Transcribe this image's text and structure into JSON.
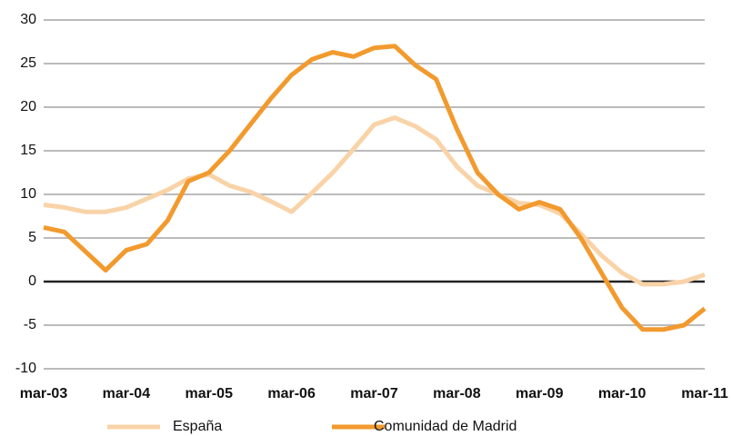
{
  "chart_data": {
    "type": "line",
    "categories": [
      "mar-03",
      null,
      null,
      null,
      "mar-04",
      null,
      null,
      null,
      "mar-05",
      null,
      null,
      null,
      "mar-06",
      null,
      null,
      null,
      "mar-07",
      null,
      null,
      null,
      "mar-08",
      null,
      null,
      null,
      "mar-09",
      null,
      null,
      null,
      "mar-10",
      null,
      null,
      null,
      "mar-11"
    ],
    "series": [
      {
        "name": "España",
        "color": "#f9d3a8",
        "values": [
          8.8,
          8.5,
          8.0,
          8.0,
          8.5,
          9.5,
          10.5,
          11.8,
          12.3,
          11.0,
          10.3,
          9.2,
          8.0,
          10.2,
          12.5,
          15.2,
          18.0,
          18.8,
          17.8,
          16.3,
          13.2,
          11.0,
          10.0,
          9.0,
          8.8,
          7.8,
          5.5,
          3.0,
          1.0,
          -0.3,
          -0.3,
          0.0,
          0.8
        ]
      },
      {
        "name": "Comunidad de Madrid",
        "color": "#f29a2e",
        "values": [
          6.2,
          5.7,
          3.5,
          1.3,
          3.6,
          4.3,
          7.0,
          11.5,
          12.5,
          15.0,
          18.0,
          21.0,
          23.7,
          25.5,
          26.3,
          25.8,
          26.8,
          27.0,
          24.8,
          23.2,
          17.5,
          12.5,
          10.0,
          8.3,
          9.1,
          8.3,
          5.0,
          1.0,
          -3.0,
          -5.5,
          -5.5,
          -5.0,
          -3.1
        ]
      }
    ],
    "ylim": [
      -10,
      30
    ],
    "yticks": [
      -10,
      -5,
      0,
      5,
      10,
      15,
      20,
      25,
      30
    ],
    "grid": true,
    "legend": "bottom"
  }
}
